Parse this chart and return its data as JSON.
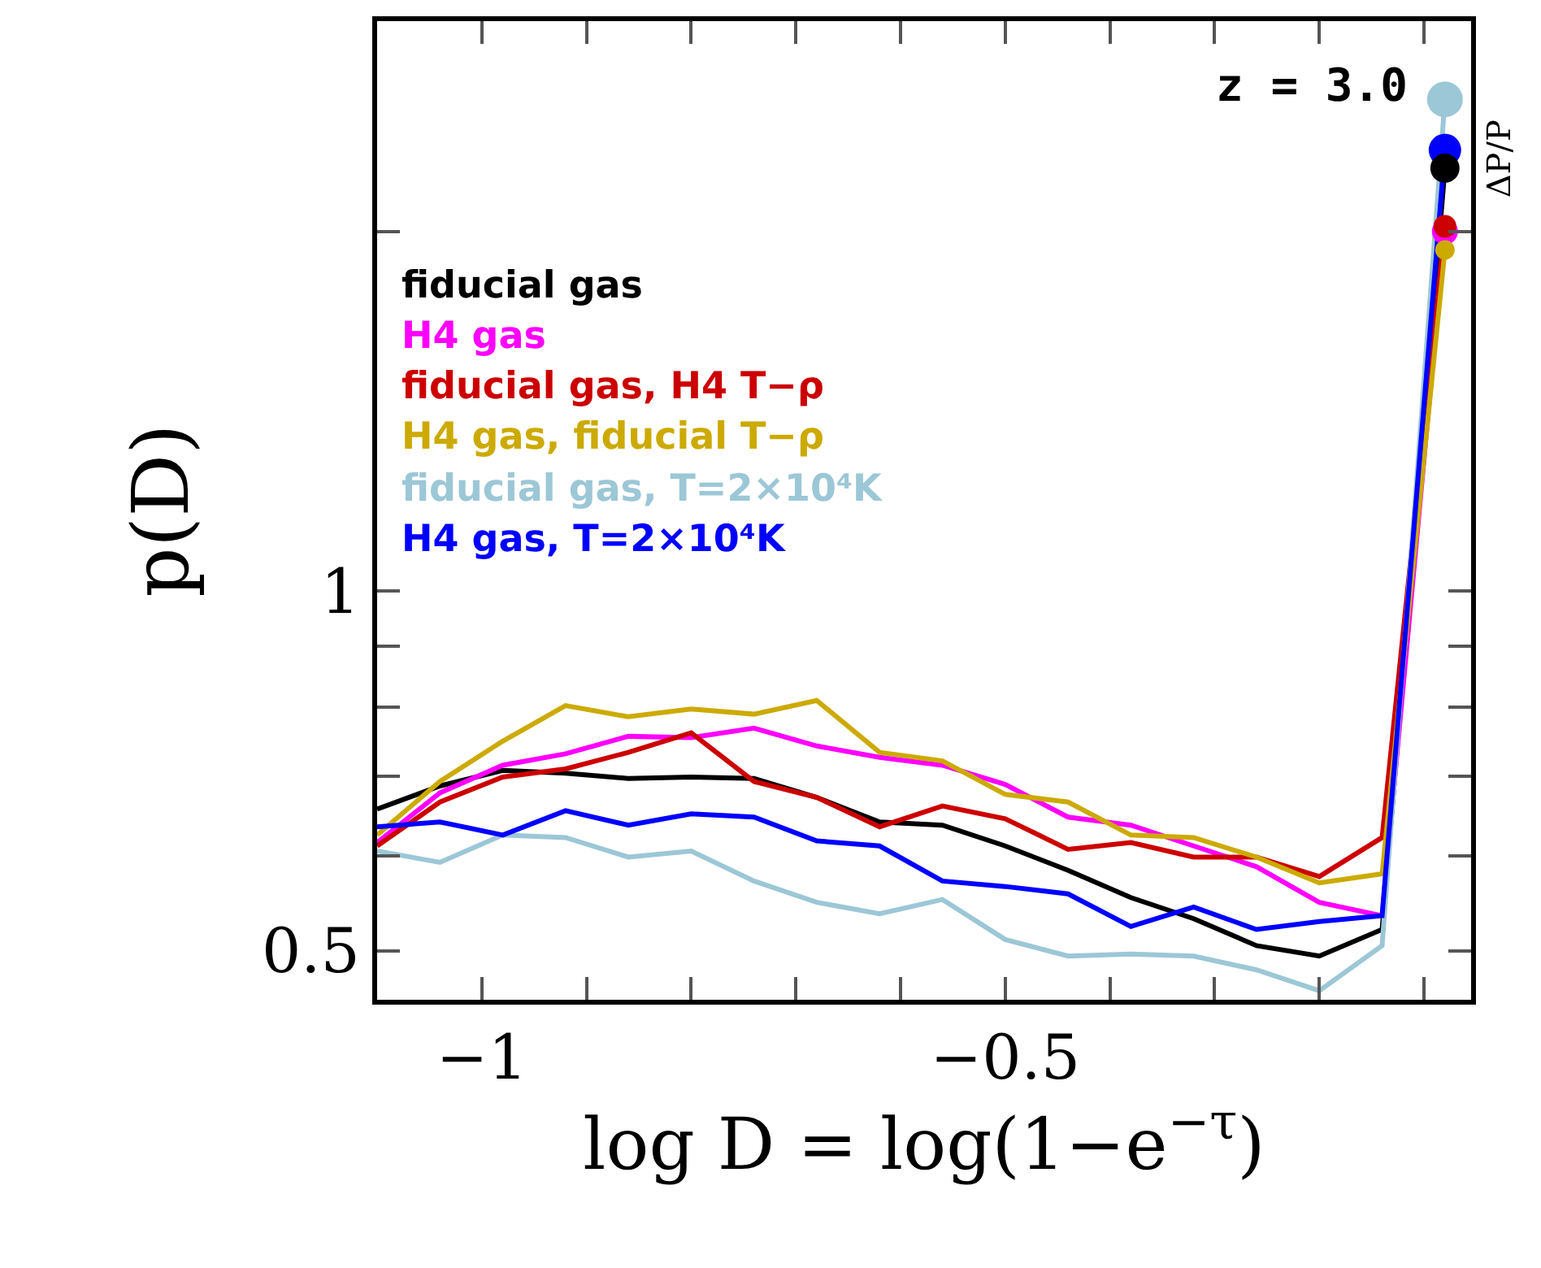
{
  "chart_data": {
    "type": "line",
    "xlabel": "log D = log(1−e$^{−τ}$)",
    "ylabel": "p(D)",
    "log": "y",
    "legend": "top left",
    "marker": "none",
    "line_style": "solid",
    "x": [
      -1.1,
      -1.04,
      -0.98,
      -0.92,
      -0.86,
      -0.8,
      -0.74,
      -0.68,
      -0.62,
      -0.56,
      -0.5,
      -0.44,
      -0.38,
      -0.32,
      -0.26,
      -0.2,
      -0.14,
      -0.08
    ],
    "xlim": [
      -1.1,
      -0.055
    ],
    "ylim": [
      0.455,
      3
    ],
    "xticks": [
      {
        "value": -1.1,
        "label": null
      },
      {
        "value": -1,
        "label": "−1"
      },
      {
        "value": -0.9,
        "label": null
      },
      {
        "value": -0.8,
        "label": null
      },
      {
        "value": -0.7,
        "label": null
      },
      {
        "value": -0.6,
        "label": null
      },
      {
        "value": -0.5,
        "label": "−0.5"
      },
      {
        "value": -0.4,
        "label": null
      },
      {
        "value": -0.3,
        "label": null
      },
      {
        "value": -0.2,
        "label": null
      },
      {
        "value": -0.1,
        "label": null
      }
    ],
    "yticks": [
      0.5,
      {
        "value": 0.6,
        "label": null
      },
      {
        "value": 0.7,
        "label": null
      },
      {
        "value": 0.8,
        "label": null
      },
      {
        "value": 0.9,
        "label": null
      },
      1,
      {
        "value": 2,
        "label": null
      },
      {
        "value": 3,
        "label": null
      }
    ],
    "series": [
      {
        "name": "fiducial gas",
        "color": "#000000",
        "values": [
          0.657,
          0.687,
          0.708,
          0.704,
          0.697,
          0.699,
          0.697,
          0.672,
          0.641,
          0.637,
          0.612,
          0.584,
          0.554,
          0.532,
          0.505,
          0.495,
          0.521,
          2.26
        ]
      },
      {
        "name": "H4 gas",
        "color": "#ff00ff",
        "values": [
          0.616,
          0.678,
          0.715,
          0.731,
          0.756,
          0.754,
          0.768,
          0.742,
          0.726,
          0.715,
          0.689,
          0.647,
          0.637,
          0.612,
          0.588,
          0.549,
          0.535,
          2.0
        ]
      },
      {
        "name": "fiducial gas, H4 T−ρ",
        "color": "#cc0000",
        "values": [
          0.612,
          0.666,
          0.699,
          0.71,
          0.733,
          0.761,
          0.693,
          0.672,
          0.635,
          0.661,
          0.645,
          0.608,
          0.616,
          0.599,
          0.599,
          0.577,
          0.622,
          2.02
        ]
      },
      {
        "name": "H4 gas, fiducial T−ρ",
        "color": "#ccaa00",
        "values": [
          0.625,
          0.693,
          0.749,
          0.802,
          0.785,
          0.797,
          0.789,
          0.81,
          0.733,
          0.721,
          0.676,
          0.666,
          0.625,
          0.622,
          0.599,
          0.57,
          0.58,
          1.93
        ]
      },
      {
        "name": "fiducial gas, T=2×10⁴K",
        "color": "#9cc7d6",
        "values": [
          0.606,
          0.593,
          0.625,
          0.622,
          0.599,
          0.606,
          0.572,
          0.549,
          0.537,
          0.552,
          0.511,
          0.495,
          0.497,
          0.495,
          0.482,
          0.463,
          0.505,
          2.58
        ]
      },
      {
        "name": "H4 gas, T=2×10⁴K",
        "color": "#0000ff",
        "values": [
          0.635,
          0.641,
          0.625,
          0.655,
          0.637,
          0.651,
          0.647,
          0.618,
          0.612,
          0.572,
          0.566,
          0.558,
          0.524,
          0.544,
          0.521,
          0.529,
          0.535,
          2.34
        ]
      },
      {
        "type": "scatter",
        "marker": "circle",
        "color": "#9cc7d6",
        "values": [
          null,
          null,
          null,
          null,
          null,
          null,
          null,
          null,
          null,
          null,
          null,
          null,
          null,
          null,
          null,
          null,
          null,
          2.58
        ]
      },
      {
        "type": "scatter",
        "marker": "circle",
        "color": "#0000ff",
        "values": [
          null,
          null,
          null,
          null,
          null,
          null,
          null,
          null,
          null,
          null,
          null,
          null,
          null,
          null,
          null,
          null,
          null,
          2.34
        ]
      },
      {
        "type": "scatter",
        "marker": "circle",
        "color": "#000000",
        "values": [
          null,
          null,
          null,
          null,
          null,
          null,
          null,
          null,
          null,
          null,
          null,
          null,
          null,
          null,
          null,
          null,
          null,
          2.26
        ]
      },
      {
        "type": "scatter",
        "marker": "circle",
        "color": "#ff00ff",
        "values": [
          null,
          null,
          null,
          null,
          null,
          null,
          null,
          null,
          null,
          null,
          null,
          null,
          null,
          null,
          null,
          null,
          null,
          2.0
        ]
      },
      {
        "type": "scatter",
        "marker": "circle",
        "color": "#cc0000",
        "values": [
          null,
          null,
          null,
          null,
          null,
          null,
          null,
          null,
          null,
          null,
          null,
          null,
          null,
          null,
          null,
          null,
          null,
          2.02
        ]
      },
      {
        "type": "scatter",
        "marker": "circle",
        "color": "#ccaa00",
        "values": [
          null,
          null,
          null,
          null,
          null,
          null,
          null,
          null,
          null,
          null,
          null,
          null,
          null,
          null,
          null,
          null,
          null,
          1.93
        ]
      }
    ],
    "annotations": [
      "z = 3.0",
      "ΔP/P"
    ]
  }
}
